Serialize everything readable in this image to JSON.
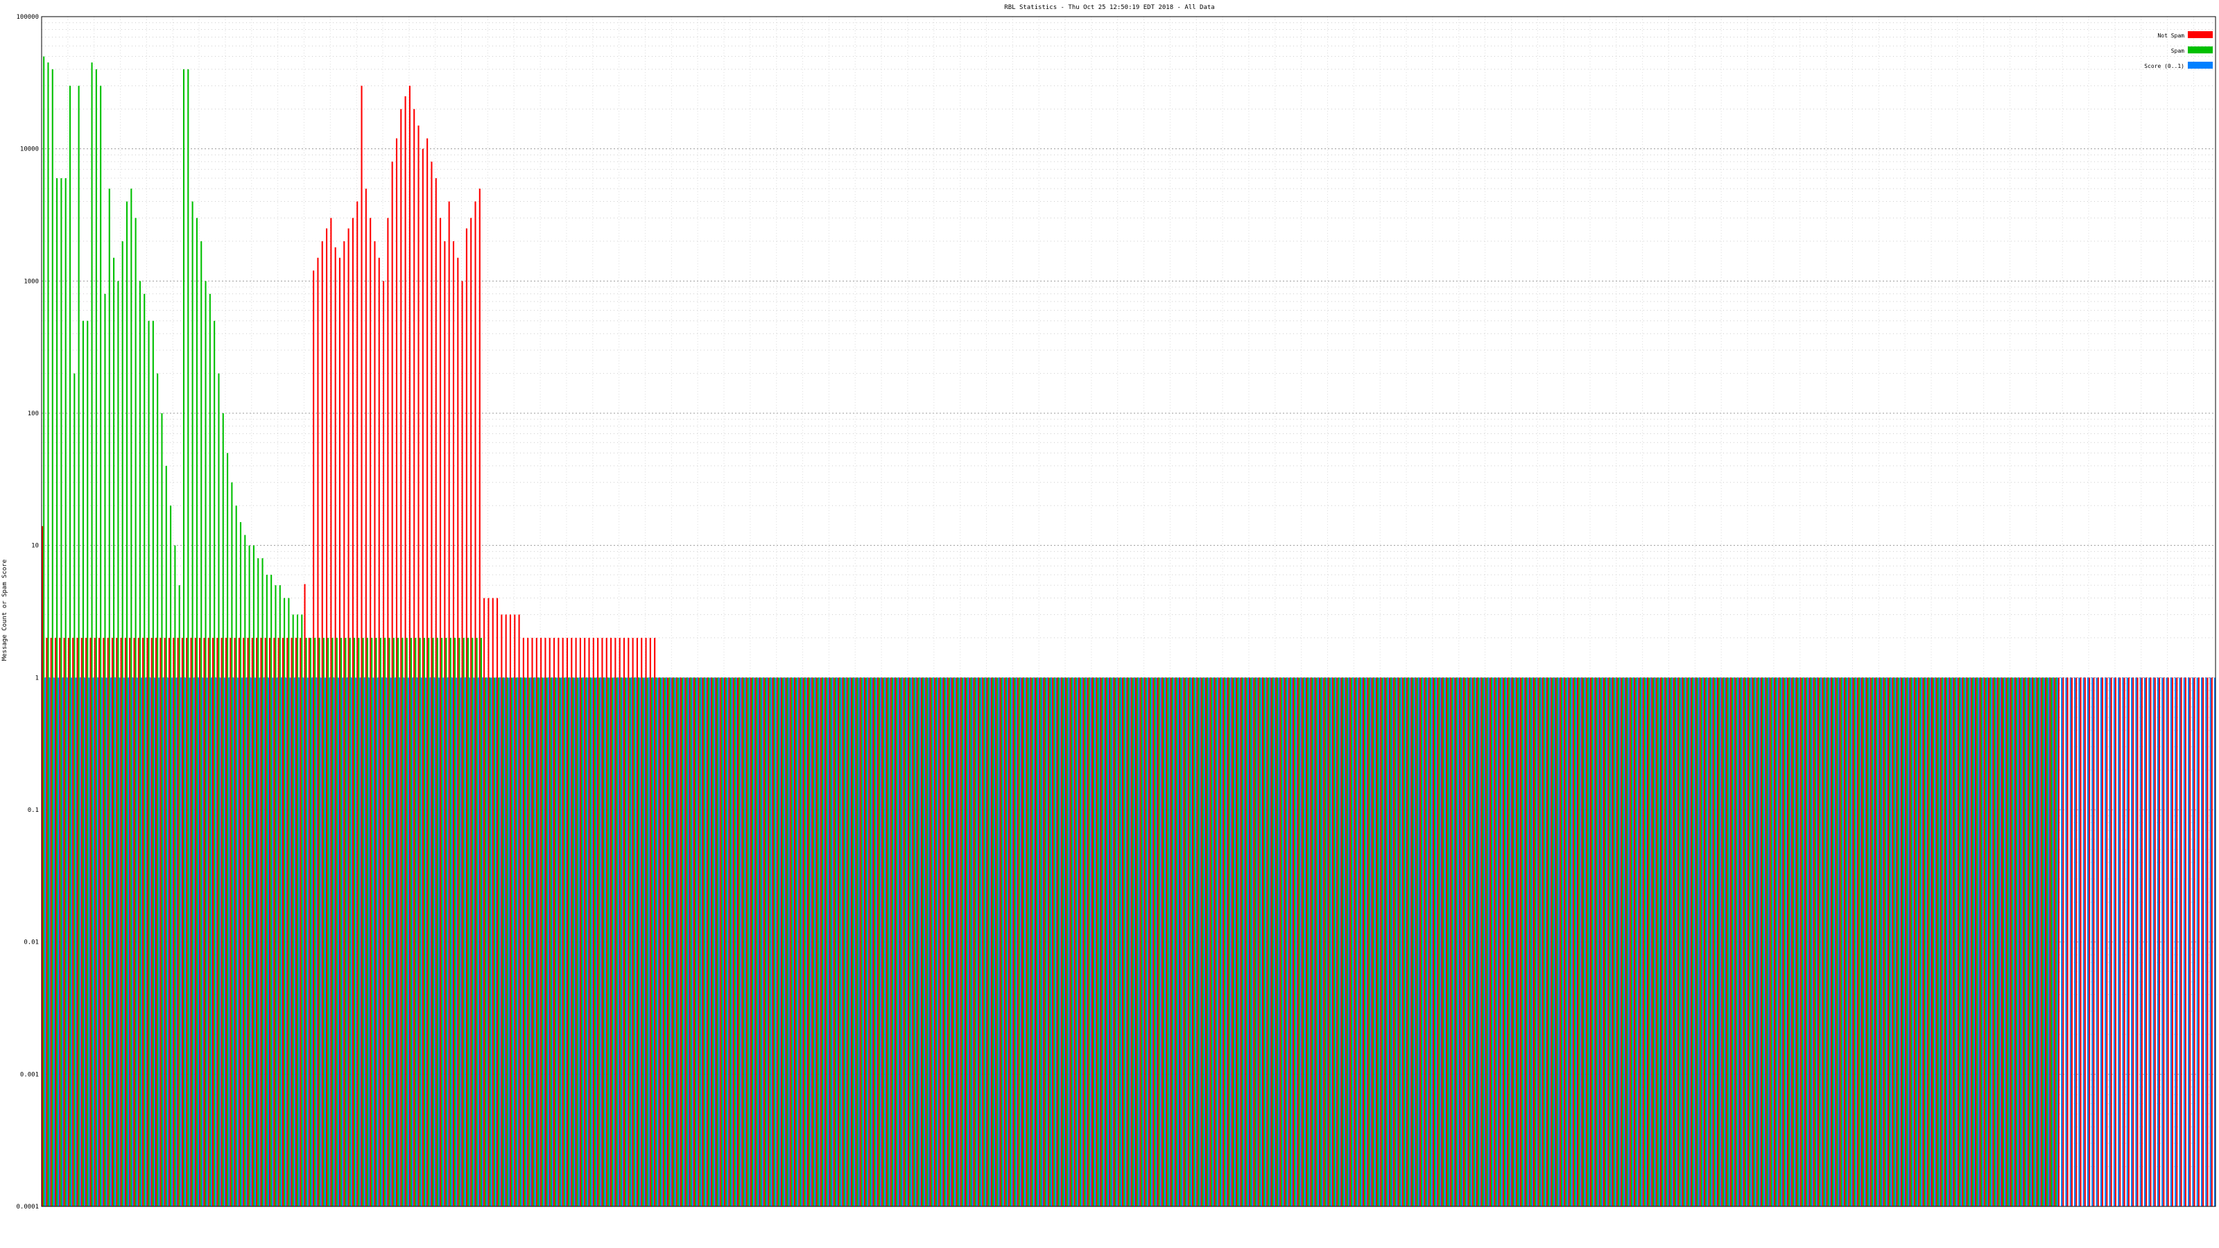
{
  "chart_data": {
    "type": "bar",
    "title": "RBL Statistics - Thu Oct 25 12:50:19 EDT 2018 - All Data",
    "xlabel": "",
    "ylabel": "Message Count or Spam Score",
    "y_scale": "log",
    "ylim": [
      0.0001,
      100000
    ],
    "y_ticks": [
      "0.0001",
      "0.001",
      "0.01",
      "0.1",
      "1",
      "10",
      "100",
      "1000",
      "10000",
      "100000"
    ],
    "grid": true,
    "legend_position": "top-right",
    "series": [
      {
        "name": "Not Spam",
        "color": "#ff0000",
        "values": [
          14,
          2,
          2,
          2,
          2,
          2,
          2,
          2,
          2,
          2,
          2,
          2,
          2,
          2,
          2,
          2,
          2,
          2,
          2,
          2,
          2,
          2,
          2,
          2,
          2,
          2,
          2,
          2,
          2,
          2,
          2,
          2,
          2,
          2,
          2,
          2,
          2,
          2,
          2,
          2,
          2,
          2,
          2,
          2,
          2,
          2,
          2,
          2,
          2,
          2,
          2,
          2,
          2,
          2,
          2,
          2,
          2,
          2,
          2,
          2,
          5.1,
          2,
          1200,
          1500,
          2000,
          2500,
          3000,
          1800,
          1500,
          2000,
          2500,
          3000,
          4000,
          30000,
          5000,
          3000,
          2000,
          1500,
          1000,
          3000,
          8000,
          12000,
          20000,
          25000,
          30000,
          20000,
          15000,
          10000,
          12000,
          8000,
          6000,
          3000,
          2000,
          4000,
          2000,
          1500,
          1000,
          2500,
          3000,
          4000,
          5000,
          4,
          4,
          4,
          4,
          3,
          3,
          3,
          3,
          3,
          2,
          2,
          2,
          2,
          2,
          2,
          2,
          2,
          2,
          2,
          2,
          2,
          2,
          2,
          2,
          2,
          2,
          2,
          2,
          2,
          2,
          2,
          2,
          2,
          2,
          2,
          2,
          2,
          2,
          2,
          2,
          1,
          1,
          1,
          1,
          1,
          1,
          1,
          1,
          1,
          1,
          1,
          1,
          1,
          1,
          1,
          1,
          1,
          1,
          1,
          1,
          1,
          1,
          1,
          1,
          1,
          1,
          1,
          1,
          1,
          1,
          1,
          1,
          1,
          1,
          1,
          1,
          1,
          1,
          1,
          1,
          1,
          1,
          1,
          1,
          1,
          1,
          1,
          1,
          1,
          1,
          1,
          1,
          1,
          1,
          1,
          1,
          1,
          1,
          1,
          1,
          1,
          1,
          1,
          1,
          1,
          1,
          1,
          1,
          1,
          1,
          1,
          1,
          1,
          1,
          1,
          1,
          1,
          1,
          1,
          1,
          1,
          1,
          1,
          1,
          1,
          1,
          1,
          1,
          1,
          1,
          1,
          1,
          1,
          1,
          1,
          1,
          1,
          1,
          1,
          1,
          1,
          1,
          1,
          1,
          1,
          1,
          1,
          1,
          1,
          1,
          1,
          1,
          1,
          1,
          1,
          1,
          1,
          1,
          1,
          1,
          1,
          1,
          1,
          1,
          1,
          1,
          1,
          1,
          1,
          1,
          1,
          1,
          1,
          1,
          1,
          1,
          1,
          1,
          1,
          1,
          1,
          1,
          1,
          1,
          1,
          1,
          1,
          1,
          1,
          1,
          1,
          1,
          1,
          1,
          1,
          1,
          1,
          1,
          1,
          1,
          1,
          1,
          1,
          1,
          1,
          1,
          1,
          1,
          1,
          1,
          1,
          1,
          1,
          1,
          1,
          1,
          1,
          1,
          1,
          1,
          1,
          1,
          1,
          1,
          1,
          1,
          1,
          1,
          1,
          1,
          1,
          1,
          1,
          1,
          1,
          1,
          1,
          1,
          1,
          1,
          1,
          1,
          1,
          1,
          1,
          1,
          1,
          1,
          1,
          1,
          1,
          1,
          1,
          1,
          1,
          1,
          1,
          1,
          1,
          1,
          1,
          1,
          1,
          1,
          1,
          1,
          1,
          1,
          1,
          1,
          1,
          1,
          1,
          1,
          1,
          1,
          1,
          1,
          1,
          1,
          1,
          1,
          1,
          1,
          1,
          1,
          1,
          1,
          1,
          1,
          1,
          1,
          1,
          1,
          1,
          1,
          1,
          1,
          1,
          1,
          1,
          1,
          1,
          1,
          1,
          1,
          1,
          1,
          1,
          1,
          1,
          1,
          1,
          1,
          1,
          1,
          1,
          1,
          1,
          1,
          1,
          1,
          1,
          1,
          1,
          1,
          1,
          1,
          1,
          1,
          1,
          1,
          1,
          1,
          1,
          1,
          1,
          1,
          1,
          1,
          1,
          1,
          1,
          1,
          1,
          1,
          1,
          1,
          1,
          1,
          1,
          1,
          1,
          1,
          1,
          1,
          1,
          1,
          1,
          1,
          1,
          1,
          1,
          1,
          1,
          1,
          1,
          1,
          1,
          1,
          1,
          1,
          1,
          1,
          1,
          1,
          1,
          1,
          1,
          1,
          1,
          1,
          1,
          1,
          1,
          1,
          1,
          1,
          1,
          1,
          1,
          1,
          1,
          1,
          1,
          1
        ]
      },
      {
        "name": "Spam",
        "color": "#00c000",
        "values": [
          50000,
          45000,
          40000,
          6000,
          6000,
          6000,
          30000,
          200,
          30000,
          500,
          500,
          45000,
          40000,
          30000,
          800,
          5000,
          1500,
          1000,
          2000,
          4000,
          5000,
          3000,
          1000,
          800,
          500,
          500,
          200,
          100,
          40,
          20,
          10,
          5,
          40000,
          40000,
          4000,
          3000,
          2000,
          1000,
          800,
          500,
          200,
          100,
          50,
          30,
          20,
          15,
          12,
          10,
          10,
          8,
          8,
          6,
          6,
          5,
          5,
          4,
          4,
          3,
          3,
          3,
          2,
          2,
          2,
          2,
          2,
          2,
          2,
          2,
          2,
          2,
          2,
          2,
          2,
          2,
          2,
          2,
          2,
          2,
          2,
          2,
          2,
          2,
          2,
          2,
          2,
          2,
          2,
          2,
          2,
          2,
          2,
          2,
          2,
          2,
          2,
          2,
          2,
          2,
          2,
          2,
          2,
          1,
          1,
          1,
          1,
          1,
          1,
          1,
          1,
          1,
          1,
          1,
          1,
          1,
          1,
          1,
          1,
          1,
          1,
          1,
          1,
          1,
          1,
          1,
          1,
          1,
          1,
          1,
          1,
          1,
          1,
          1,
          1,
          1,
          1,
          1,
          1,
          1,
          1,
          1,
          1,
          1,
          1,
          1,
          1,
          1,
          1,
          1,
          1,
          1,
          1,
          1,
          1,
          1,
          1,
          1,
          1,
          1,
          1,
          1,
          1,
          1,
          1,
          1,
          1,
          1,
          1,
          1,
          1,
          1,
          1,
          1,
          1,
          1,
          1,
          1,
          1,
          1,
          1,
          1,
          1,
          1,
          1,
          1,
          1,
          1,
          1,
          1,
          1,
          1,
          1,
          1,
          1,
          1,
          1,
          1,
          1,
          1,
          1,
          1,
          1,
          1,
          1,
          1,
          1,
          1,
          1,
          1,
          1,
          1,
          1,
          1,
          1,
          1,
          1,
          1,
          1,
          1,
          1,
          1,
          1,
          1,
          1,
          1,
          1,
          1,
          1,
          1,
          1,
          1,
          1,
          1,
          1,
          1,
          1,
          1,
          1,
          1,
          1,
          1,
          1,
          1,
          1,
          1,
          1,
          1,
          1,
          1,
          1,
          1,
          1,
          1,
          1,
          1,
          1,
          1,
          1,
          1,
          1,
          1,
          1,
          1,
          1,
          1,
          1,
          1,
          1,
          1,
          1,
          1,
          1,
          1,
          1,
          1,
          1,
          1,
          1,
          1,
          1,
          1,
          1,
          1,
          1,
          1,
          1,
          1,
          1,
          1,
          1,
          1,
          1,
          1,
          1,
          1,
          1,
          1,
          1,
          1,
          1,
          1,
          1,
          1,
          1,
          1,
          1,
          1,
          1,
          1,
          1,
          1,
          1,
          1,
          1,
          1,
          1,
          1,
          1,
          1,
          1,
          1,
          1,
          1,
          1,
          1,
          1,
          1,
          1,
          1,
          1,
          1,
          1,
          1,
          1,
          1,
          1,
          1,
          1,
          1,
          1,
          1,
          1,
          1,
          1,
          1,
          1,
          1,
          1,
          1,
          1,
          1,
          1,
          1,
          1,
          1,
          1,
          1,
          1,
          1,
          1,
          1,
          1,
          1,
          1,
          1,
          1,
          1,
          1,
          1,
          1,
          1,
          1,
          1,
          1,
          1,
          1,
          1,
          1,
          1,
          1,
          1,
          1,
          1,
          1,
          1,
          1,
          1,
          1,
          1,
          1,
          1,
          1,
          1,
          1,
          1,
          1,
          1,
          1,
          1,
          1,
          1,
          1,
          1,
          1,
          1,
          1,
          1,
          1,
          1,
          1,
          1,
          1,
          1,
          1,
          1,
          1,
          1,
          1,
          1,
          1,
          1,
          1,
          1,
          1,
          1,
          1,
          1,
          1,
          1,
          1,
          1,
          1,
          1,
          1,
          1,
          1,
          1,
          1,
          1,
          1,
          1,
          1,
          1,
          1,
          1,
          1,
          1,
          1,
          1,
          1,
          1,
          1,
          1,
          1,
          1,
          1,
          1,
          1,
          1,
          1,
          1,
          1
        ]
      },
      {
        "name": "Score (0..1)",
        "color": "#0080ff",
        "values": [
          1,
          1,
          1,
          1,
          1,
          1,
          1,
          1,
          1,
          1,
          1,
          1,
          1,
          1,
          1,
          1,
          1,
          1,
          1,
          1,
          1,
          1,
          1,
          1,
          1,
          1,
          1,
          1,
          1,
          1,
          1,
          1,
          1,
          1,
          1,
          1,
          1,
          1,
          1,
          1,
          1,
          1,
          1,
          1,
          1,
          1,
          1,
          1,
          1,
          1,
          1,
          1,
          1,
          1,
          1,
          1,
          1,
          1,
          1,
          1,
          1,
          1,
          1,
          1,
          1,
          1,
          1,
          1,
          1,
          1,
          1,
          1,
          1,
          1,
          1,
          1,
          1,
          1,
          1,
          1,
          1,
          1,
          1,
          1,
          1,
          1,
          1,
          1,
          1,
          1,
          1,
          1,
          1,
          1,
          1,
          1,
          1,
          1,
          1,
          1,
          1,
          1,
          1,
          1,
          1,
          1,
          1,
          1,
          1,
          1,
          1,
          1,
          1,
          1,
          1,
          1,
          1,
          1,
          1,
          1,
          1,
          1,
          1,
          1,
          1,
          1,
          1,
          1,
          1,
          1,
          1,
          1,
          1,
          1,
          1,
          1,
          1,
          1,
          1,
          1,
          1,
          1,
          1,
          1,
          1,
          1,
          1,
          1,
          1,
          1,
          1,
          1,
          1,
          1,
          1,
          1,
          1,
          1,
          1,
          1,
          1,
          1,
          1,
          1,
          1,
          1,
          1,
          1,
          1,
          1,
          1,
          1,
          1,
          1,
          1,
          1,
          1,
          1,
          1,
          1,
          1,
          1,
          1,
          1,
          1,
          1,
          1,
          1,
          1,
          1,
          1,
          1,
          1,
          1,
          1,
          1,
          1,
          1,
          1,
          1,
          1,
          1,
          1,
          1,
          1,
          1,
          1,
          1,
          1,
          1,
          1,
          1,
          1,
          1,
          1,
          1,
          1,
          1,
          1,
          1,
          1,
          1,
          1,
          1,
          1,
          1,
          1,
          1,
          1,
          1,
          1,
          1,
          1,
          1,
          1,
          1,
          1,
          1,
          1,
          1,
          1,
          1,
          1,
          1,
          1,
          1,
          1,
          1,
          1,
          1,
          1,
          1,
          1,
          1,
          1,
          1,
          1,
          1,
          1,
          1,
          1,
          1,
          1,
          1,
          1,
          1,
          1,
          1,
          1,
          1,
          1,
          1,
          1,
          1,
          1,
          1,
          1,
          1,
          1,
          1,
          1,
          1,
          1,
          1,
          1,
          1,
          1,
          1,
          1,
          1,
          1,
          1,
          1,
          1,
          1,
          1,
          1,
          1,
          1,
          1,
          1,
          1,
          1,
          1,
          1,
          1,
          1,
          1,
          1,
          1,
          1,
          1,
          1,
          1,
          1,
          1,
          1,
          1,
          1,
          1,
          1,
          1,
          1,
          1,
          1,
          1,
          1,
          1,
          1,
          1,
          1,
          1,
          1,
          1,
          1,
          1,
          1,
          1,
          1,
          1,
          1,
          1,
          1,
          1,
          1,
          1,
          1,
          1,
          1,
          1,
          1,
          1,
          1,
          1,
          1,
          1,
          1,
          1,
          1,
          1,
          1,
          1,
          1,
          1,
          1,
          1,
          1,
          1,
          1,
          1,
          1,
          1,
          1,
          1,
          1,
          1,
          1,
          1,
          1,
          1,
          1,
          1,
          1,
          1,
          1,
          1,
          1,
          1,
          1,
          1,
          1,
          1,
          1,
          1,
          1,
          1,
          1,
          1,
          1,
          1,
          1,
          1,
          1,
          1,
          1,
          1,
          1,
          1,
          1,
          1,
          1,
          1,
          1,
          1,
          1,
          1,
          1,
          1,
          1,
          1,
          1,
          1,
          1,
          1,
          1,
          1,
          1,
          1,
          1,
          1,
          1,
          1,
          1,
          1,
          1,
          1,
          1,
          1,
          1,
          1,
          1,
          1,
          1,
          1,
          1,
          1,
          1,
          1,
          1,
          1,
          1,
          1,
          1,
          1,
          1,
          1,
          1,
          1,
          1,
          1,
          1,
          1,
          1,
          1,
          1,
          1,
          1,
          1,
          1,
          1,
          1,
          1,
          1,
          1,
          1,
          1,
          1,
          1,
          1,
          1,
          1,
          1,
          1,
          1,
          1,
          1,
          1,
          1,
          1,
          1,
          1,
          1,
          1,
          1,
          1,
          1,
          1
        ]
      }
    ]
  }
}
